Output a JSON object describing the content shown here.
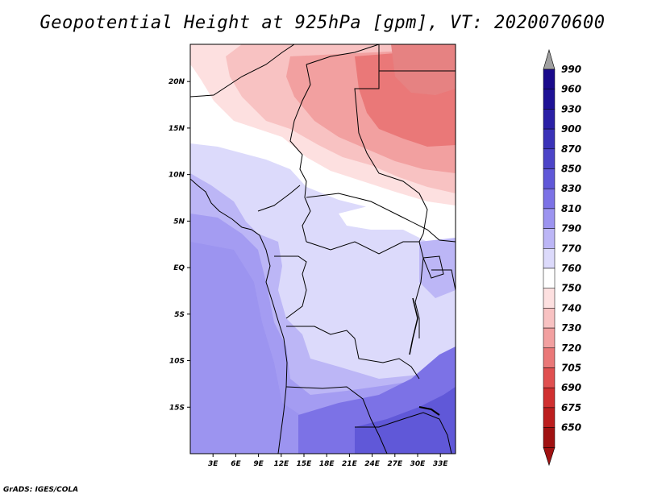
{
  "title": "Geopotential Height at 925hPa [gpm], VT: 2020070600",
  "credit": "GrADS: IGES/COLA",
  "map": {
    "lon_range": [
      0,
      35
    ],
    "lat_range": [
      -20,
      24
    ],
    "lat_ticks": [
      {
        "value": 20,
        "label": "20N"
      },
      {
        "value": 15,
        "label": "15N"
      },
      {
        "value": 10,
        "label": "10N"
      },
      {
        "value": 5,
        "label": "5N"
      },
      {
        "value": 0,
        "label": "EQ"
      },
      {
        "value": -5,
        "label": "5S"
      },
      {
        "value": -10,
        "label": "10S"
      },
      {
        "value": -15,
        "label": "15S"
      }
    ],
    "lon_ticks": [
      {
        "value": 3,
        "label": "3E"
      },
      {
        "value": 6,
        "label": "6E"
      },
      {
        "value": 9,
        "label": "9E"
      },
      {
        "value": 12,
        "label": "12E"
      },
      {
        "value": 15,
        "label": "15E"
      },
      {
        "value": 18,
        "label": "18E"
      },
      {
        "value": 21,
        "label": "21E"
      },
      {
        "value": 24,
        "label": "24E"
      },
      {
        "value": 27,
        "label": "27E"
      },
      {
        "value": 30,
        "label": "30E"
      },
      {
        "value": 33,
        "label": "33E"
      }
    ]
  },
  "colorbar": {
    "levels": [
      {
        "label": "990",
        "color": "#1a0a8c"
      },
      {
        "label": "960",
        "color": "#1e1296"
      },
      {
        "label": "930",
        "color": "#2a20a6"
      },
      {
        "label": "900",
        "color": "#3a32b8"
      },
      {
        "label": "870",
        "color": "#4c44c8"
      },
      {
        "label": "850",
        "color": "#6058d8"
      },
      {
        "label": "830",
        "color": "#7c72e6"
      },
      {
        "label": "810",
        "color": "#9c94f0"
      },
      {
        "label": "790",
        "color": "#bcb6f6"
      },
      {
        "label": "770",
        "color": "#dcdafb"
      },
      {
        "label": "760",
        "color": "#ffffff"
      },
      {
        "label": "750",
        "color": "#fde0e0"
      },
      {
        "label": "740",
        "color": "#f8c2c2"
      },
      {
        "label": "730",
        "color": "#f2a0a0"
      },
      {
        "label": "720",
        "color": "#ea7878"
      },
      {
        "label": "705",
        "color": "#e05050"
      },
      {
        "label": "690",
        "color": "#d03030"
      },
      {
        "label": "675",
        "color": "#bc1e1e"
      },
      {
        "label": "650",
        "color": "#a01212"
      }
    ],
    "top_arrow_color": "#a0a0a0",
    "bottom_arrow_color": "#a01212"
  }
}
